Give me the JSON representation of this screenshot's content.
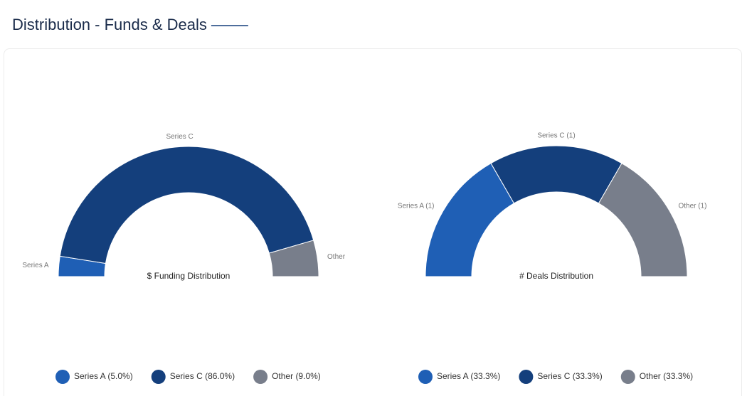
{
  "header": {
    "title": "Distribution - Funds & Deals"
  },
  "chart_data": [
    {
      "type": "donut",
      "title": "$ Funding Distribution",
      "categories": [
        "Series A",
        "Series C",
        "Other"
      ],
      "values": [
        5.0,
        86.0,
        9.0
      ],
      "legend_labels": [
        "Series A (5.0%)",
        "Series C (86.0%)",
        "Other (9.0%)"
      ],
      "colors": [
        "#1f5fb5",
        "#143f7c",
        "#787e8b"
      ]
    },
    {
      "type": "donut",
      "title": "# Deals Distribution",
      "categories": [
        "Series A (1)",
        "Series C (1)",
        "Other (1)"
      ],
      "values": [
        33.3,
        33.3,
        33.3
      ],
      "legend_labels": [
        "Series A (33.3%)",
        "Series C (33.3%)",
        "Other (33.3%)"
      ],
      "colors": [
        "#1f5fb5",
        "#143f7c",
        "#787e8b"
      ]
    }
  ]
}
